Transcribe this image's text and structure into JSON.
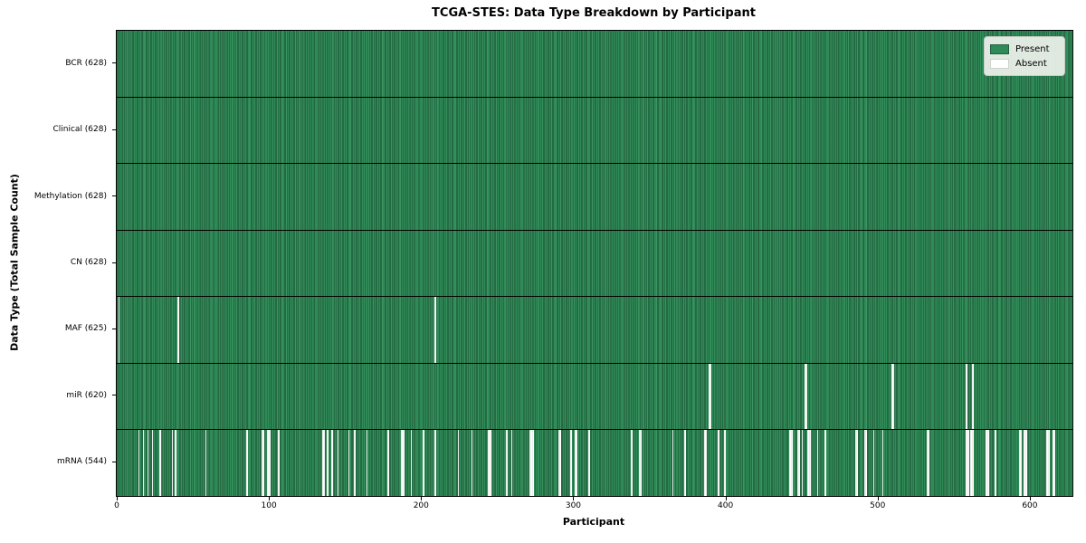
{
  "figure": {
    "title": "TCGA-STES: Data Type Breakdown by Participant",
    "xlabel": "Participant",
    "ylabel": "Data Type (Total Sample Count)"
  },
  "legend": {
    "entries": [
      {
        "name": "present",
        "label": "Present",
        "color": "#2e8b57"
      },
      {
        "name": "absent",
        "label": "Absent",
        "color": "#ffffff"
      }
    ]
  },
  "colors": {
    "present": "#2e8b57",
    "absent": "#ffffff",
    "cell_edge": "#17422a",
    "plot_border": "#000000"
  },
  "chart_data": {
    "type": "heatmap",
    "title": "TCGA-STES: Data Type Breakdown by Participant",
    "xlabel": "Participant",
    "ylabel": "Data Type (Total Sample Count)",
    "legend": [
      "Present",
      "Absent"
    ],
    "legend_position": "upper right",
    "grid": false,
    "n_participants": 628,
    "x_range": [
      0,
      628
    ],
    "x_ticks": [
      0,
      100,
      200,
      300,
      400,
      500,
      600
    ],
    "rows": [
      {
        "data_type": "BCR",
        "label": "BCR (628)",
        "present_count": 628,
        "absent_participants": []
      },
      {
        "data_type": "Clinical",
        "label": "Clinical (628)",
        "present_count": 628,
        "absent_participants": []
      },
      {
        "data_type": "Methylation",
        "label": "Methylation (628)",
        "present_count": 628,
        "absent_participants": []
      },
      {
        "data_type": "CN",
        "label": "CN (628)",
        "present_count": 628,
        "absent_participants": []
      },
      {
        "data_type": "MAF",
        "label": "MAF (625)",
        "present_count": 625,
        "absent_participants": [
          1,
          40,
          209
        ]
      },
      {
        "data_type": "miR",
        "label": "miR (620)",
        "present_count": 620,
        "absent_participants": [
          389,
          390,
          452,
          453,
          509,
          510,
          558,
          562
        ]
      },
      {
        "data_type": "mRNA",
        "label": "mRNA (544)",
        "present_count": 544,
        "absent_participants": [
          14,
          17,
          20,
          23,
          28,
          36,
          38,
          58,
          85,
          95,
          96,
          99,
          100,
          106,
          135,
          136,
          138,
          141,
          145,
          152,
          156,
          164,
          178,
          187,
          188,
          193,
          201,
          209,
          224,
          233,
          244,
          245,
          256,
          259,
          271,
          272,
          273,
          290,
          291,
          298,
          301,
          302,
          310,
          338,
          343,
          344,
          365,
          373,
          386,
          387,
          395,
          399,
          442,
          443,
          447,
          448,
          450,
          454,
          455,
          460,
          465,
          485,
          486,
          491,
          492,
          497,
          503,
          532,
          533,
          558,
          559,
          561,
          562,
          571,
          572,
          577,
          593,
          594,
          596,
          597,
          611,
          612,
          615,
          616
        ]
      }
    ]
  }
}
